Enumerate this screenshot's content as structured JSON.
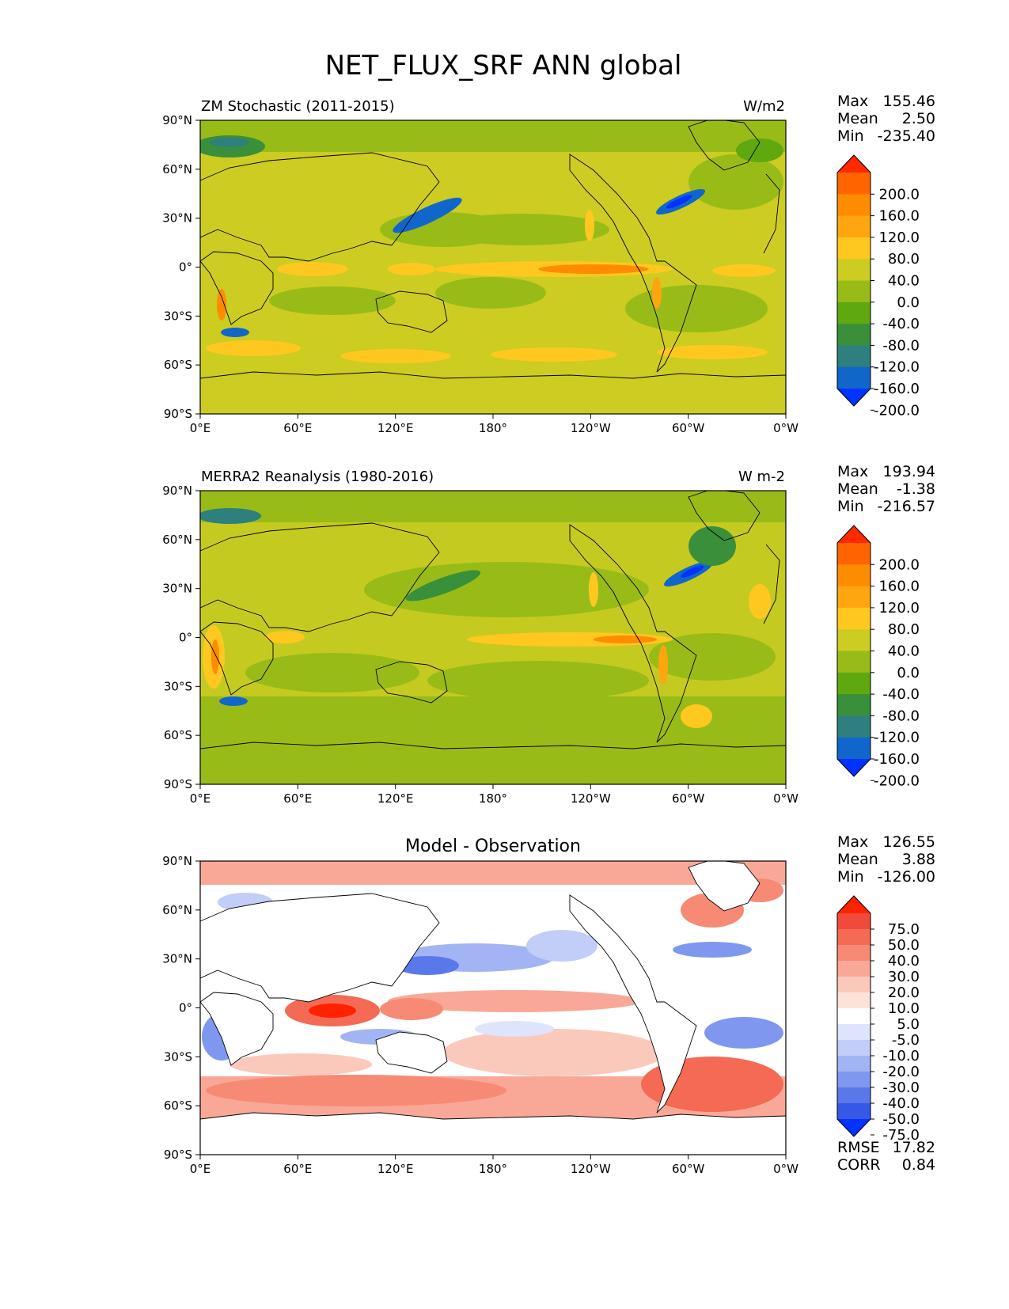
{
  "figure": {
    "title": "NET_FLUX_SRF ANN global"
  },
  "axes": {
    "lat_ticks": [
      "90°N",
      "60°N",
      "30°N",
      "0°",
      "30°S",
      "60°S",
      "90°S"
    ],
    "lon_ticks": [
      "0°E",
      "60°E",
      "120°E",
      "180°",
      "120°W",
      "60°W",
      "0°W"
    ]
  },
  "panels": [
    {
      "id": "model",
      "left_title": "ZM Stochastic (2011-2015)",
      "center_title": "",
      "units": "W/m2",
      "stats": {
        "max_label": "Max",
        "max": "155.46",
        "mean_label": "Mean",
        "mean": "2.50",
        "min_label": "Min",
        "min": "-235.40"
      },
      "colorbar": {
        "labels": [
          "200.0",
          "160.0",
          "120.0",
          "80.0",
          "40.0",
          "0.0",
          "-40.0",
          "-80.0",
          "-120.0",
          "-160.0",
          "-200.0"
        ],
        "colors": [
          "#ff2a00",
          "#ff6400",
          "#ff8c00",
          "#ffa510",
          "#ffc820",
          "#cccc22",
          "#99bb18",
          "#5fa80f",
          "#3a8f3a",
          "#2f7f7f",
          "#1166cc",
          "#0033ff"
        ]
      }
    },
    {
      "id": "obs",
      "left_title": "MERRA2 Reanalysis (1980-2016)",
      "center_title": "",
      "units": "W m-2",
      "stats": {
        "max_label": "Max",
        "max": "193.94",
        "mean_label": "Mean",
        "mean": "-1.38",
        "min_label": "Min",
        "min": "-216.57"
      },
      "colorbar": {
        "labels": [
          "200.0",
          "160.0",
          "120.0",
          "80.0",
          "40.0",
          "0.0",
          "-40.0",
          "-80.0",
          "-120.0",
          "-160.0",
          "-200.0"
        ],
        "colors": [
          "#ff2a00",
          "#ff6400",
          "#ff8c00",
          "#ffa510",
          "#ffc820",
          "#cccc22",
          "#99bb18",
          "#5fa80f",
          "#3a8f3a",
          "#2f7f7f",
          "#1166cc",
          "#0033ff"
        ]
      }
    },
    {
      "id": "diff",
      "left_title": "",
      "center_title": "Model - Observation",
      "units": "",
      "stats": {
        "max_label": "Max",
        "max": "126.55",
        "mean_label": "Mean",
        "mean": "3.88",
        "min_label": "Min",
        "min": "-126.00"
      },
      "colorbar": {
        "labels": [
          "75.0",
          "50.0",
          "40.0",
          "30.0",
          "20.0",
          "10.0",
          "5.0",
          "-5.0",
          "-10.0",
          "-20.0",
          "-30.0",
          "-40.0",
          "-50.0",
          "-75.0"
        ],
        "colors": [
          "#ff2200",
          "#f24a3a",
          "#f46a55",
          "#f78a75",
          "#f9a898",
          "#fbc8bc",
          "#fde2da",
          "#ffffff",
          "#dde4fb",
          "#c2cdf8",
          "#a3b4f4",
          "#7f97ef",
          "#5a78ea",
          "#3558e6",
          "#0033ff"
        ]
      },
      "metrics": {
        "rmse_label": "RMSE",
        "rmse": "17.82",
        "corr_label": "CORR",
        "corr": "0.84"
      }
    }
  ]
}
